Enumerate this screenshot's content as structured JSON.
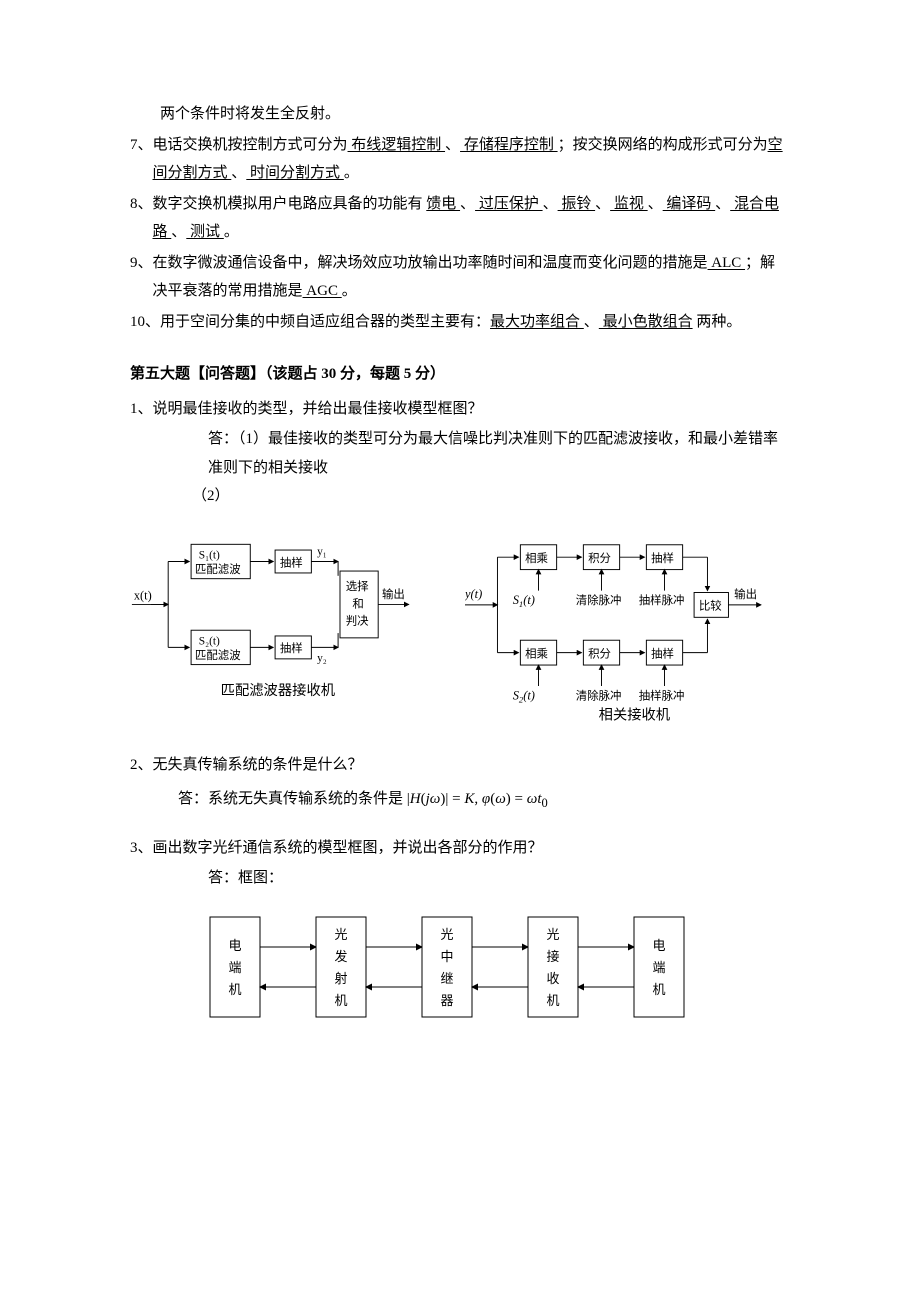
{
  "colors": {
    "text": "#000000",
    "bg": "#ffffff",
    "stroke": "#000000"
  },
  "fill_items": [
    {
      "num": "",
      "body_pre": "两个条件时将发生全反射。",
      "blanks": []
    },
    {
      "num": "7、",
      "body": "电话交换机按控制方式可分为",
      "seq": [
        {
          "t": "u",
          "v": "  布线逻辑控制  "
        },
        {
          "t": "p",
          "v": " 、"
        },
        {
          "t": "u",
          "v": "  存储程序控制  "
        },
        {
          "t": "p",
          "v": " ；按交换网络的构成形式可分为"
        },
        {
          "t": "u",
          "v": "空间分割方式  "
        },
        {
          "t": "p",
          "v": " 、"
        },
        {
          "t": "u",
          "v": "  时间分割方式  "
        },
        {
          "t": "p",
          "v": " 。"
        }
      ]
    },
    {
      "num": "8、",
      "body": "数字交换机模拟用户电路应具备的功能有 ",
      "seq": [
        {
          "t": "u",
          "v": " 馈电  "
        },
        {
          "t": "p",
          "v": " 、"
        },
        {
          "t": "u",
          "v": "  过压保护  "
        },
        {
          "t": "p",
          "v": " 、"
        },
        {
          "t": "u",
          "v": "  振铃  "
        },
        {
          "t": "p",
          "v": " 、"
        },
        {
          "t": "u",
          "v": "  监视  "
        },
        {
          "t": "p",
          "v": " 、"
        },
        {
          "t": "u",
          "v": " 编译码  "
        },
        {
          "t": "p",
          "v": " 、"
        },
        {
          "t": "u",
          "v": "  混合电路  "
        },
        {
          "t": "p",
          "v": " 、"
        },
        {
          "t": "u",
          "v": "  测试  "
        },
        {
          "t": "p",
          "v": " 。"
        }
      ]
    },
    {
      "num": "9、",
      "body": "在数字微波通信设备中，解决场效应功放输出功率随时间和温度而变化问题的措施是",
      "seq": [
        {
          "t": "u",
          "v": "  ALC    "
        },
        {
          "t": "p",
          "v": " ；解决平衰落的常用措施是"
        },
        {
          "t": "u",
          "v": "  AGC   "
        },
        {
          "t": "p",
          "v": " 。"
        }
      ]
    },
    {
      "num": "10、",
      "body": "用于空间分集的中频自适应组合器的类型主要有：",
      "seq": [
        {
          "t": "u",
          "v": "最大功率组合   "
        },
        {
          "t": "p",
          "v": " 、"
        },
        {
          "t": "u",
          "v": "   最小色散组合"
        },
        {
          "t": "p",
          "v": " 两种。"
        }
      ]
    }
  ],
  "section5": {
    "title": "第五大题【问答题】（该题占 30 分，每题 5 分）",
    "q1": {
      "num": "1、",
      "q": "说明最佳接收的类型，并给出最佳接收模型框图？",
      "a1": "答：（1）最佳接收的类型可分为最大信噪比判决准则下的匹配滤波接收，和最小差错率准则下的相关接收",
      "a2": "（2）",
      "caption_left": "匹配滤波器接收机",
      "caption_right": "相关接收机"
    },
    "q2": {
      "num": "2、",
      "q": "无失真传输系统的条件是什么？",
      "a_prefix": "答：系统无失真传输系统的条件是",
      "formula_plain": "|H(jω)| = K, φ(ω) = ωt",
      "formula_sub": "0"
    },
    "q3": {
      "num": "3、",
      "q": "画出数字光纤通信系统的模型框图，并说出各部分的作用？",
      "a": "答：框图："
    }
  },
  "diag_match": {
    "input": "x(t)",
    "s1": "S₁(t)",
    "s2": "S₂(t)",
    "filter": "匹配滤波",
    "sample": "抽样",
    "y1": "y₁",
    "y2": "y₂",
    "decide_l1": "选择",
    "decide_l2": "和",
    "decide_l3": "判决",
    "out": "输出"
  },
  "diag_corr": {
    "input": "y(t)",
    "s1": "S₁(t)",
    "s2": "S₂(t)",
    "mul": "相乘",
    "int": "积分",
    "sample": "抽样",
    "clear": "清除脉冲",
    "spulse": "抽样脉冲",
    "cmp": "比较",
    "out": "输出"
  },
  "diag_fiber": {
    "b1": [
      "电",
      "端",
      "机"
    ],
    "b2": [
      "光",
      "发",
      "射",
      "机"
    ],
    "b3": [
      "光",
      "中",
      "继",
      "器"
    ],
    "b4": [
      "光",
      "接",
      "收",
      "机"
    ],
    "b5": [
      "电",
      "端",
      "机"
    ]
  },
  "style": {
    "diagram_box_stroke": "#000000",
    "diagram_box_fill": "#ffffff",
    "font_size_body": 15,
    "font_size_diagram": 13
  }
}
